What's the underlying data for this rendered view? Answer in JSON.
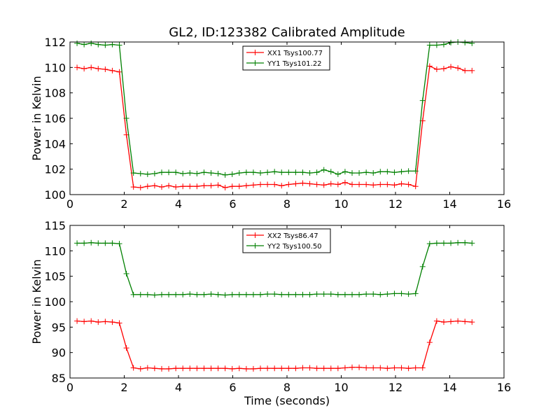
{
  "figure_title": "GL2, ID:123382 Calibrated Amplitude",
  "colors": {
    "xx": "#ff0000",
    "yy": "#008000",
    "axis": "#000000",
    "background": "#ffffff"
  },
  "chart_data": [
    {
      "type": "line",
      "title": "GL2, ID:123382 Calibrated Amplitude",
      "xlabel": "",
      "ylabel": "Power in Kelvin",
      "xlim": [
        0,
        16
      ],
      "ylim": [
        100,
        112
      ],
      "xticks": [
        0,
        2,
        4,
        6,
        8,
        10,
        12,
        14,
        16
      ],
      "yticks": [
        100,
        102,
        104,
        106,
        108,
        110,
        112
      ],
      "xtick_labels": [
        "0",
        "2",
        "4",
        "6",
        "8",
        "10",
        "12",
        "14",
        "16"
      ],
      "ytick_labels": [
        "100",
        "102",
        "104",
        "106",
        "108",
        "110",
        "112"
      ],
      "grid": false,
      "legend": "top-center",
      "marker": "plus",
      "x": [
        0.26,
        0.52,
        0.78,
        1.04,
        1.3,
        1.56,
        1.82,
        2.08,
        2.34,
        2.6,
        2.86,
        3.12,
        3.38,
        3.64,
        3.9,
        4.16,
        4.42,
        4.68,
        4.94,
        5.2,
        5.46,
        5.72,
        5.98,
        6.24,
        6.5,
        6.76,
        7.02,
        7.28,
        7.54,
        7.8,
        8.06,
        8.32,
        8.58,
        8.84,
        9.1,
        9.36,
        9.62,
        9.88,
        10.14,
        10.4,
        10.66,
        10.92,
        11.18,
        11.44,
        11.7,
        11.96,
        12.22,
        12.48,
        12.74,
        13.0,
        13.26,
        13.52,
        13.78,
        14.04,
        14.3,
        14.56,
        14.82
      ],
      "series": [
        {
          "name": "XX1 Tsys100.77",
          "color": "#ff0000",
          "values": [
            110.0,
            109.9,
            110.0,
            109.9,
            109.85,
            109.75,
            109.65,
            104.7,
            100.6,
            100.55,
            100.65,
            100.7,
            100.6,
            100.7,
            100.6,
            100.65,
            100.65,
            100.65,
            100.7,
            100.7,
            100.75,
            100.55,
            100.65,
            100.65,
            100.7,
            100.75,
            100.8,
            100.8,
            100.8,
            100.7,
            100.8,
            100.85,
            100.9,
            100.85,
            100.8,
            100.75,
            100.85,
            100.8,
            100.95,
            100.8,
            100.8,
            100.8,
            100.75,
            100.8,
            100.8,
            100.75,
            100.85,
            100.8,
            100.65,
            105.8,
            110.1,
            109.85,
            109.9,
            110.05,
            109.95,
            109.75,
            109.75
          ]
        },
        {
          "name": "YY1 Tsys101.22",
          "color": "#008000",
          "values": [
            111.9,
            111.8,
            111.9,
            111.8,
            111.75,
            111.8,
            111.75,
            106.0,
            101.7,
            101.65,
            101.6,
            101.65,
            101.75,
            101.75,
            101.75,
            101.65,
            101.7,
            101.65,
            101.75,
            101.7,
            101.65,
            101.55,
            101.6,
            101.7,
            101.75,
            101.75,
            101.7,
            101.75,
            101.8,
            101.75,
            101.75,
            101.75,
            101.75,
            101.7,
            101.75,
            101.95,
            101.8,
            101.6,
            101.8,
            101.7,
            101.7,
            101.75,
            101.7,
            101.8,
            101.8,
            101.75,
            101.8,
            101.85,
            101.85,
            107.4,
            111.75,
            111.75,
            111.8,
            111.95,
            112.0,
            111.95,
            111.9
          ]
        }
      ]
    },
    {
      "type": "line",
      "title": "",
      "xlabel": "Time (seconds)",
      "ylabel": "Power in Kelvin",
      "xlim": [
        0,
        16
      ],
      "ylim": [
        85,
        115
      ],
      "xticks": [
        0,
        2,
        4,
        6,
        8,
        10,
        12,
        14,
        16
      ],
      "yticks": [
        85,
        90,
        95,
        100,
        105,
        110,
        115
      ],
      "xtick_labels": [
        "0",
        "2",
        "4",
        "6",
        "8",
        "10",
        "12",
        "14",
        "16"
      ],
      "ytick_labels": [
        "85",
        "90",
        "95",
        "100",
        "105",
        "110",
        "115"
      ],
      "grid": false,
      "legend": "top-center",
      "marker": "plus",
      "x": [
        0.26,
        0.52,
        0.78,
        1.04,
        1.3,
        1.56,
        1.82,
        2.08,
        2.34,
        2.6,
        2.86,
        3.12,
        3.38,
        3.64,
        3.9,
        4.16,
        4.42,
        4.68,
        4.94,
        5.2,
        5.46,
        5.72,
        5.98,
        6.24,
        6.5,
        6.76,
        7.02,
        7.28,
        7.54,
        7.8,
        8.06,
        8.32,
        8.58,
        8.84,
        9.1,
        9.36,
        9.62,
        9.88,
        10.14,
        10.4,
        10.66,
        10.92,
        11.18,
        11.44,
        11.7,
        11.96,
        12.22,
        12.48,
        12.74,
        13.0,
        13.26,
        13.52,
        13.78,
        14.04,
        14.3,
        14.56,
        14.82
      ],
      "series": [
        {
          "name": "XX2 Tsys86.47",
          "color": "#ff0000",
          "values": [
            96.2,
            96.1,
            96.2,
            96.0,
            96.1,
            96.0,
            95.8,
            90.9,
            87.0,
            86.8,
            87.0,
            86.9,
            86.8,
            86.8,
            86.9,
            86.9,
            86.9,
            86.9,
            86.9,
            86.9,
            86.9,
            86.9,
            86.8,
            86.9,
            86.8,
            86.8,
            86.9,
            86.9,
            86.9,
            86.9,
            86.9,
            86.9,
            87.0,
            87.0,
            86.9,
            86.9,
            86.9,
            86.9,
            87.0,
            87.1,
            87.1,
            87.0,
            87.0,
            87.0,
            86.9,
            87.0,
            87.0,
            86.9,
            87.0,
            87.0,
            92.0,
            96.2,
            96.0,
            96.1,
            96.2,
            96.1,
            96.0
          ]
        },
        {
          "name": "YY2 Tsys100.50",
          "color": "#008000",
          "values": [
            111.5,
            111.5,
            111.6,
            111.5,
            111.5,
            111.5,
            111.4,
            105.5,
            101.4,
            101.4,
            101.4,
            101.3,
            101.4,
            101.4,
            101.4,
            101.4,
            101.5,
            101.4,
            101.4,
            101.5,
            101.4,
            101.3,
            101.4,
            101.4,
            101.4,
            101.4,
            101.4,
            101.5,
            101.5,
            101.4,
            101.4,
            101.4,
            101.4,
            101.4,
            101.5,
            101.5,
            101.5,
            101.4,
            101.4,
            101.4,
            101.4,
            101.5,
            101.5,
            101.4,
            101.5,
            101.6,
            101.6,
            101.5,
            101.6,
            106.9,
            111.4,
            111.5,
            111.5,
            111.5,
            111.6,
            111.6,
            111.5
          ]
        }
      ]
    }
  ]
}
